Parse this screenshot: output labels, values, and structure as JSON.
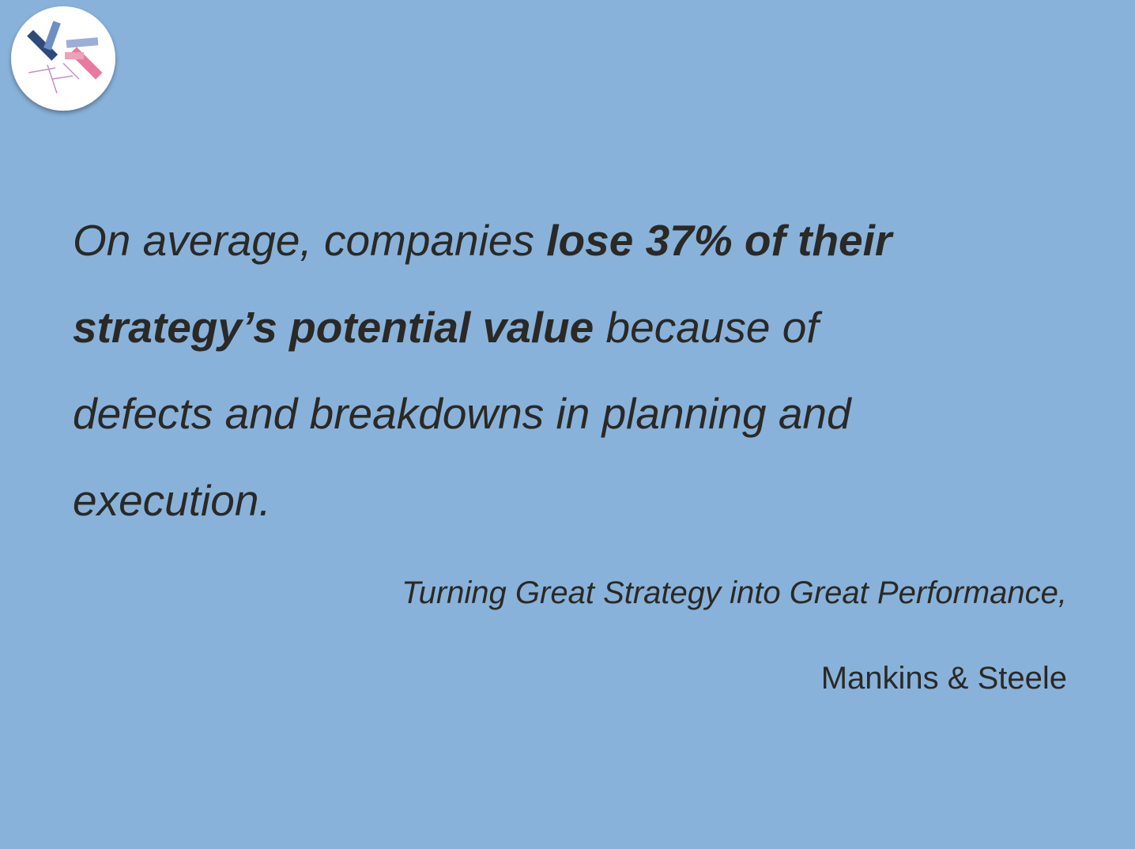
{
  "quote": {
    "lines": [
      [
        "On average, companies ",
        "lose 37% of their"
      ],
      [
        "strategy’s potential value",
        " because of"
      ],
      [
        "defects and breakdowns in planning and"
      ],
      [
        "execution."
      ]
    ]
  },
  "source": {
    "title": "Turning Great Strategy into Great Performance,",
    "authors": "Mankins & Steele"
  }
}
